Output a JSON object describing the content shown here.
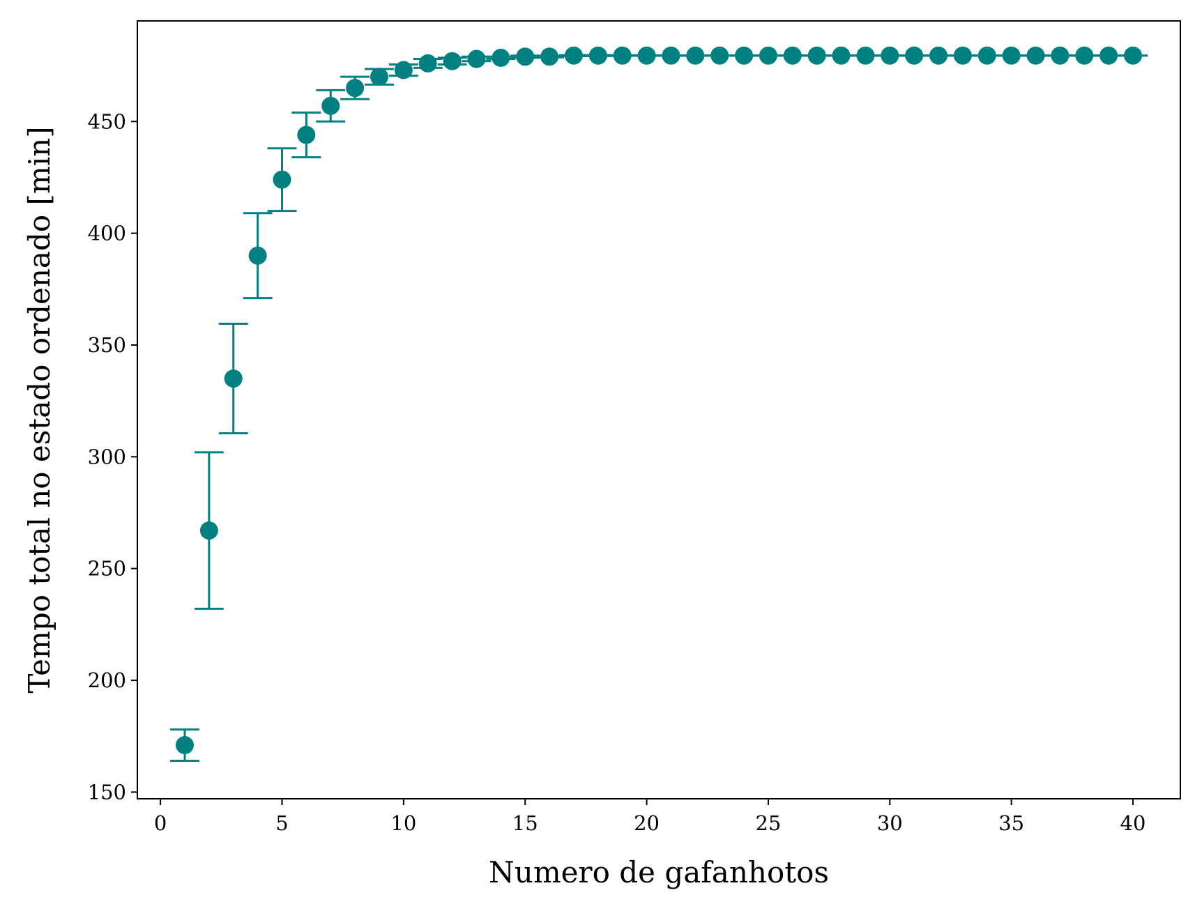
{
  "chart_data": {
    "type": "scatter",
    "title": "",
    "xlabel": "Numero de gafanhotos",
    "ylabel": "Tempo total no estado ordenado [min]",
    "xlim": [
      -0.95,
      41.95
    ],
    "ylim": [
      147,
      495
    ],
    "xticks": [
      0,
      5,
      10,
      15,
      20,
      25,
      30,
      35,
      40
    ],
    "yticks": [
      150,
      200,
      250,
      300,
      350,
      400,
      450
    ],
    "grid": false,
    "legend": "none",
    "error_bars": true,
    "color": "#008080",
    "series": [
      {
        "x": [
          1,
          2,
          3,
          4,
          5,
          6,
          7,
          8,
          9,
          10,
          11,
          12,
          13,
          14,
          15,
          16,
          17,
          18,
          19,
          20,
          21,
          22,
          23,
          24,
          25,
          26,
          27,
          28,
          29,
          30,
          31,
          32,
          33,
          34,
          35,
          36,
          37,
          38,
          39,
          40
        ],
        "y": [
          171,
          267,
          335,
          390,
          424,
          444,
          457,
          465,
          470,
          473,
          476,
          477,
          478,
          478.5,
          479,
          479,
          479.5,
          479.5,
          479.5,
          479.5,
          479.5,
          479.5,
          479.5,
          479.5,
          479.5,
          479.5,
          479.5,
          479.5,
          479.5,
          479.5,
          479.5,
          479.5,
          479.5,
          479.5,
          479.5,
          479.5,
          479.5,
          479.5,
          479.5,
          479.5
        ],
        "yerr": [
          7,
          35,
          24.5,
          19,
          14,
          10,
          7,
          5,
          3.5,
          2.5,
          2,
          1.5,
          1,
          0.5,
          0.5,
          0.3,
          0.2,
          0.2,
          0.1,
          0.1,
          0,
          0,
          0,
          0,
          0,
          0,
          0,
          0,
          0,
          0,
          0,
          0,
          0,
          0,
          0,
          0,
          0,
          0,
          0,
          0
        ]
      }
    ]
  }
}
